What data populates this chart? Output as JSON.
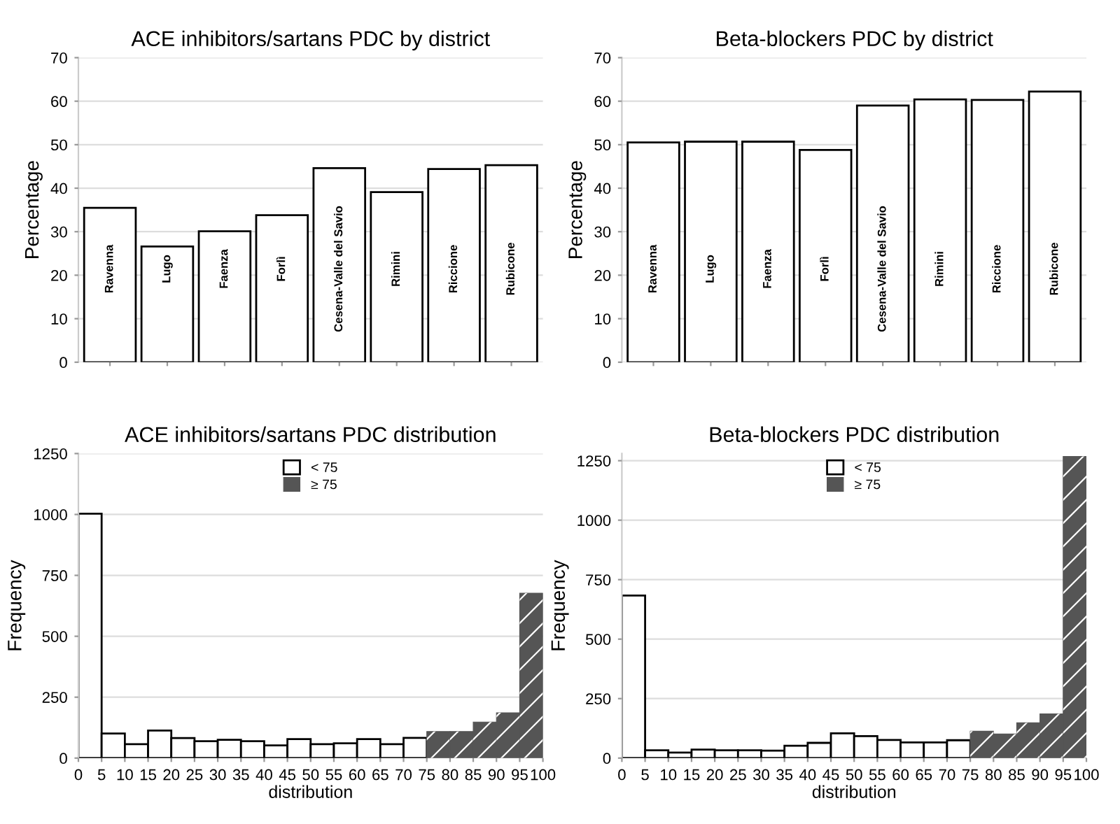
{
  "chart_data": [
    {
      "type": "bar",
      "title": "ACE inhibitors/sartans PDC by district",
      "ylabel": "Percentage",
      "categories": [
        "Ravenna",
        "Lugo",
        "Faenza",
        "Forlì",
        "Cesena-Valle del Savio",
        "Rimini",
        "Riccione",
        "Rubicone"
      ],
      "values": [
        35.5,
        26.6,
        30.1,
        33.8,
        44.6,
        39.1,
        44.4,
        45.3
      ],
      "color": "#ffffff",
      "ylim": [
        0,
        70
      ],
      "yticks": [
        0,
        10,
        20,
        30,
        40,
        50,
        60,
        70
      ],
      "grid": "y"
    },
    {
      "type": "bar",
      "title": "Beta-blockers PDC by district",
      "ylabel": "Percentage",
      "categories": [
        "Ravenna",
        "Lugo",
        "Faenza",
        "Forlì",
        "Cesena-Valle del Savio",
        "Rimini",
        "Riccione",
        "Rubicone"
      ],
      "values": [
        50.5,
        50.7,
        50.7,
        48.8,
        59.0,
        60.4,
        60.3,
        62.2
      ],
      "color": "#ffffff",
      "ylim": [
        0,
        70
      ],
      "yticks": [
        0,
        10,
        20,
        30,
        40,
        50,
        60,
        70
      ],
      "grid": "y"
    },
    {
      "type": "histogram",
      "title": "ACE inhibitors/sartans PDC distribution",
      "xlabel": "distribution",
      "ylabel": "Frequency",
      "bins": [
        0,
        5,
        10,
        15,
        20,
        25,
        30,
        35,
        40,
        45,
        50,
        55,
        60,
        65,
        70,
        75,
        80,
        85,
        90,
        95,
        100
      ],
      "series": [
        {
          "name": "< 75",
          "color": "#ffffff",
          "values": [
            1003,
            101,
            57,
            113,
            82,
            69,
            75,
            69,
            52,
            78,
            57,
            61,
            78,
            57,
            83,
            null,
            null,
            null,
            null,
            null
          ]
        },
        {
          "name": "≥ 75",
          "color": "#555555",
          "values": [
            null,
            null,
            null,
            null,
            null,
            null,
            null,
            null,
            null,
            null,
            null,
            null,
            null,
            null,
            null,
            109,
            109,
            148,
            186,
            677
          ]
        }
      ],
      "xlim": [
        0,
        100
      ],
      "xticks": [
        0,
        5,
        10,
        15,
        20,
        25,
        30,
        35,
        40,
        45,
        50,
        55,
        60,
        65,
        70,
        75,
        80,
        85,
        90,
        95,
        100
      ],
      "ylim": [
        0,
        1250
      ],
      "yticks": [
        0,
        250,
        500,
        750,
        1000,
        1250
      ],
      "grid": "y",
      "legend": "top"
    },
    {
      "type": "histogram",
      "title": "Beta-blockers PDC distribution",
      "xlabel": "distribution",
      "ylabel": "Frequency",
      "bins": [
        0,
        5,
        10,
        15,
        20,
        25,
        30,
        35,
        40,
        45,
        50,
        55,
        60,
        65,
        70,
        75,
        80,
        85,
        90,
        95,
        100
      ],
      "series": [
        {
          "name": "< 75",
          "color": "#ffffff",
          "values": [
            683,
            33,
            23,
            36,
            33,
            33,
            31,
            52,
            64,
            104,
            92,
            76,
            66,
            66,
            75,
            null,
            null,
            null,
            null,
            null
          ]
        },
        {
          "name": "≥ 75",
          "color": "#555555",
          "values": [
            null,
            null,
            null,
            null,
            null,
            null,
            null,
            null,
            null,
            null,
            null,
            null,
            null,
            null,
            null,
            113,
            101,
            148,
            186,
            1268
          ]
        }
      ],
      "xlim": [
        0,
        100
      ],
      "xticks": [
        0,
        5,
        10,
        15,
        20,
        25,
        30,
        35,
        40,
        45,
        50,
        55,
        60,
        65,
        70,
        75,
        80,
        85,
        90,
        95,
        100
      ],
      "ylim": [
        0,
        1280
      ],
      "yticks": [
        0,
        250,
        500,
        750,
        1000,
        1250
      ],
      "grid": "y",
      "legend": "top"
    }
  ]
}
